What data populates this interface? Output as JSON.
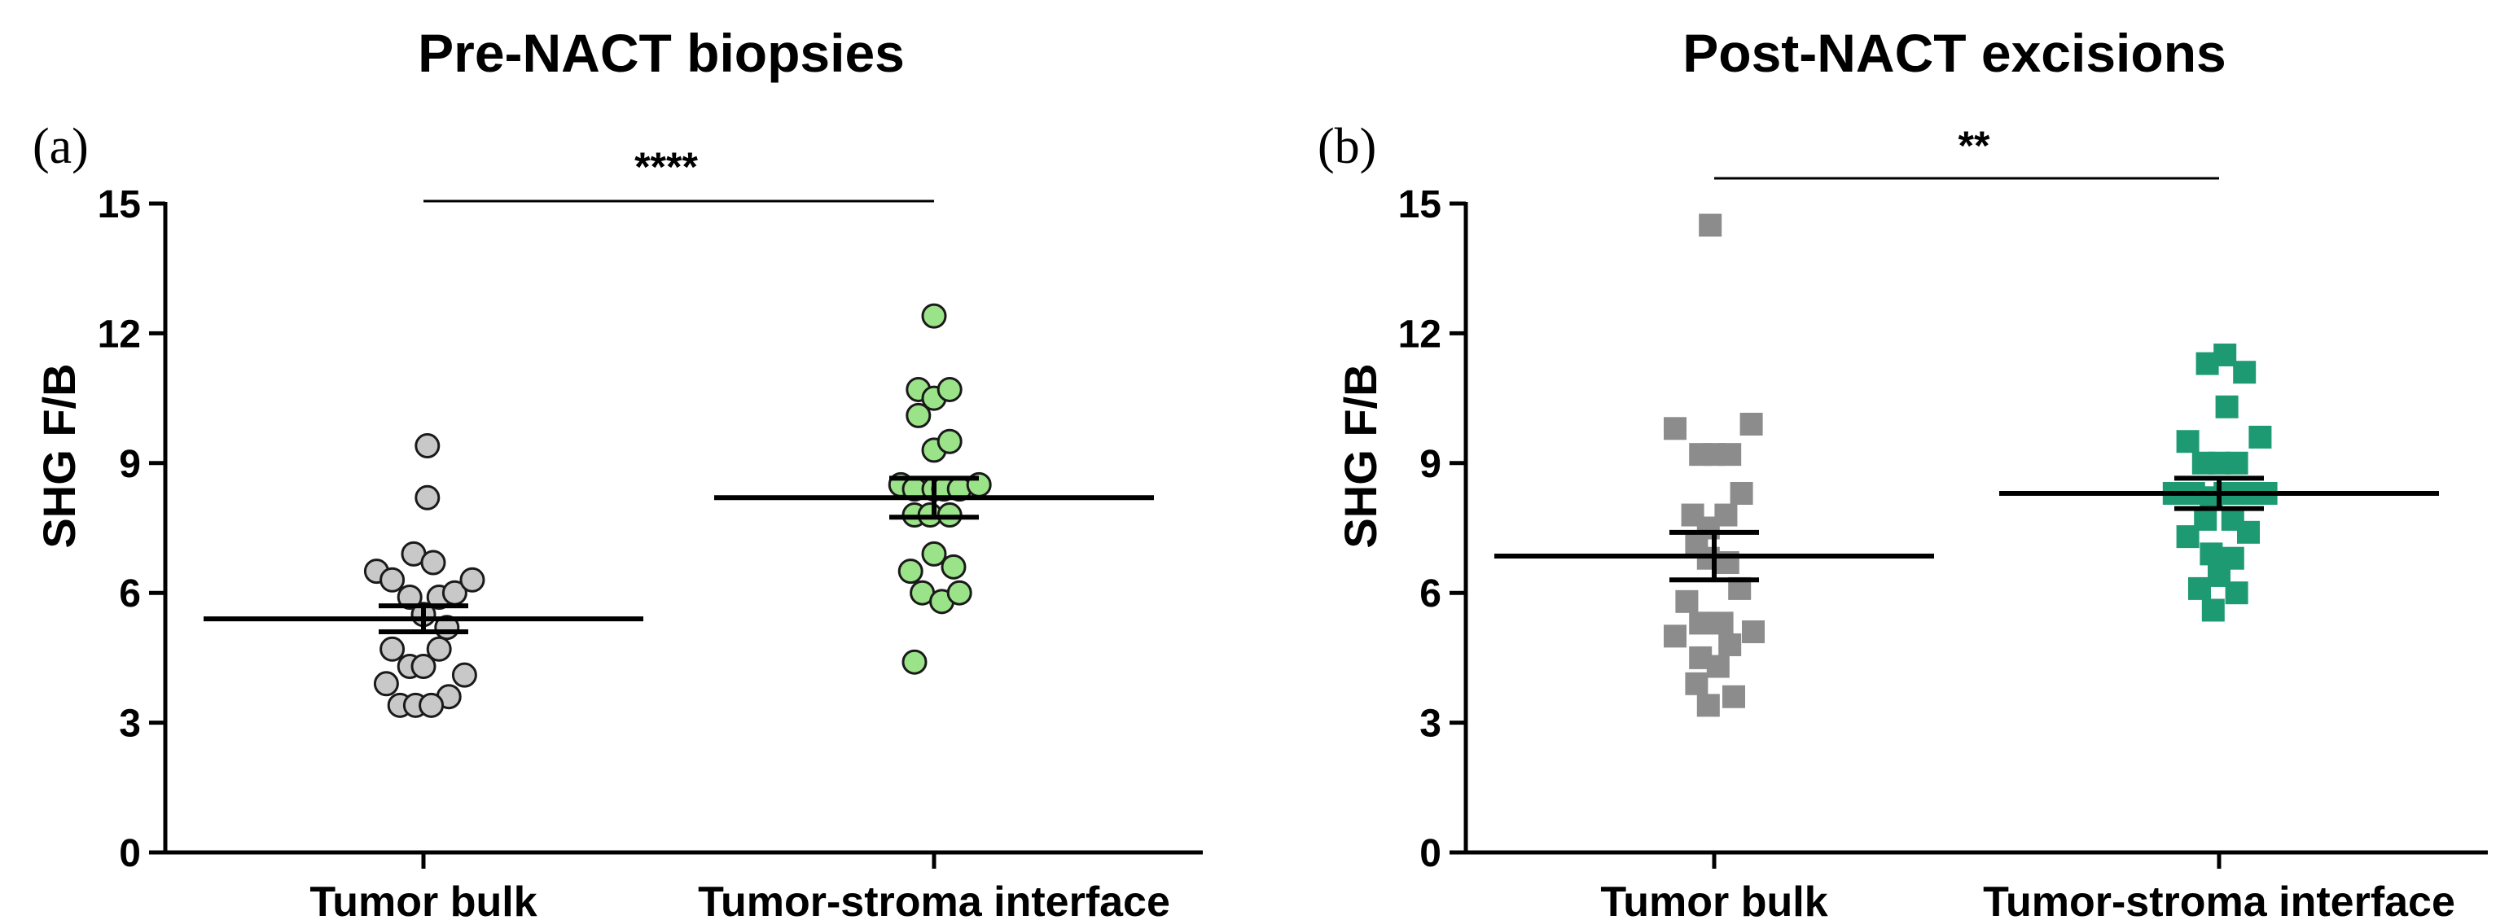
{
  "chart_data": [
    {
      "type": "scatter",
      "panel_label": "(a)",
      "title": "Pre-NACT biopsies",
      "ylabel": "SHG F/B",
      "xlabel": "",
      "ylim": [
        0,
        15
      ],
      "yticks": [
        "0",
        "3",
        "6",
        "9",
        "12",
        "15"
      ],
      "categories": [
        "Tumor bulk",
        "Tumor-stroma interface"
      ],
      "marker": "circle",
      "significance": "****",
      "series": [
        {
          "name": "Tumor bulk",
          "color": "#c8c8c8",
          "mean": 5.4,
          "sem": 0.3,
          "points": [
            {
              "x": 0.02,
              "y": 9.4
            },
            {
              "x": 0.02,
              "y": 8.2
            },
            {
              "x": -0.05,
              "y": 6.9
            },
            {
              "x": 0.05,
              "y": 6.7
            },
            {
              "x": -0.24,
              "y": 6.5
            },
            {
              "x": -0.16,
              "y": 6.3
            },
            {
              "x": -0.07,
              "y": 5.9
            },
            {
              "x": 0.08,
              "y": 5.9
            },
            {
              "x": 0.16,
              "y": 6.0
            },
            {
              "x": 0.25,
              "y": 6.3
            },
            {
              "x": 0.0,
              "y": 5.5
            },
            {
              "x": 0.12,
              "y": 5.2
            },
            {
              "x": -0.16,
              "y": 4.7
            },
            {
              "x": 0.08,
              "y": 4.7
            },
            {
              "x": -0.07,
              "y": 4.3
            },
            {
              "x": 0.0,
              "y": 4.3
            },
            {
              "x": 0.21,
              "y": 4.1
            },
            {
              "x": -0.19,
              "y": 3.9
            },
            {
              "x": 0.13,
              "y": 3.6
            },
            {
              "x": -0.12,
              "y": 3.4
            },
            {
              "x": -0.04,
              "y": 3.4
            },
            {
              "x": 0.04,
              "y": 3.4
            }
          ]
        },
        {
          "name": "Tumor-stroma interface",
          "color": "#9be389",
          "mean": 8.2,
          "sem": 0.45,
          "points": [
            {
              "x": 0.0,
              "y": 12.4
            },
            {
              "x": -0.08,
              "y": 10.7
            },
            {
              "x": -0.08,
              "y": 10.1
            },
            {
              "x": 0.0,
              "y": 10.5
            },
            {
              "x": 0.08,
              "y": 10.7
            },
            {
              "x": 0.0,
              "y": 9.3
            },
            {
              "x": 0.08,
              "y": 9.5
            },
            {
              "x": -0.17,
              "y": 8.5
            },
            {
              "x": -0.1,
              "y": 8.4
            },
            {
              "x": 0.0,
              "y": 8.4
            },
            {
              "x": 0.05,
              "y": 8.4
            },
            {
              "x": 0.13,
              "y": 8.4
            },
            {
              "x": 0.23,
              "y": 8.5
            },
            {
              "x": -0.1,
              "y": 7.8
            },
            {
              "x": -0.02,
              "y": 7.8
            },
            {
              "x": 0.08,
              "y": 7.8
            },
            {
              "x": -0.12,
              "y": 6.5
            },
            {
              "x": 0.0,
              "y": 6.9
            },
            {
              "x": 0.1,
              "y": 6.6
            },
            {
              "x": -0.06,
              "y": 6.0
            },
            {
              "x": 0.04,
              "y": 5.8
            },
            {
              "x": 0.13,
              "y": 6.0
            },
            {
              "x": -0.1,
              "y": 4.4
            }
          ]
        }
      ]
    },
    {
      "type": "scatter",
      "panel_label": "(b)",
      "title": "Post-NACT excisions",
      "ylabel": "SHG F/B",
      "xlabel": "",
      "ylim": [
        0,
        15
      ],
      "yticks": [
        "0",
        "3",
        "6",
        "9",
        "12",
        "15"
      ],
      "categories": [
        "Tumor bulk",
        "Tumor-stroma interface"
      ],
      "marker": "square",
      "significance": "**",
      "series": [
        {
          "name": "Tumor bulk",
          "color": "#8c8c8c",
          "mean": 6.85,
          "sem": 0.55,
          "points": [
            {
              "x": -0.02,
              "y": 14.5
            },
            {
              "x": -0.2,
              "y": 9.8
            },
            {
              "x": 0.19,
              "y": 9.9
            },
            {
              "x": -0.07,
              "y": 9.2
            },
            {
              "x": 0.0,
              "y": 9.2
            },
            {
              "x": 0.08,
              "y": 9.2
            },
            {
              "x": 0.14,
              "y": 8.3
            },
            {
              "x": -0.11,
              "y": 7.8
            },
            {
              "x": 0.06,
              "y": 7.8
            },
            {
              "x": -0.03,
              "y": 7.5
            },
            {
              "x": -0.09,
              "y": 7.1
            },
            {
              "x": -0.03,
              "y": 6.8
            },
            {
              "x": 0.07,
              "y": 6.7
            },
            {
              "x": 0.13,
              "y": 6.1
            },
            {
              "x": -0.14,
              "y": 5.8
            },
            {
              "x": -0.07,
              "y": 5.3
            },
            {
              "x": 0.04,
              "y": 5.3
            },
            {
              "x": -0.2,
              "y": 5.0
            },
            {
              "x": 0.2,
              "y": 5.1
            },
            {
              "x": 0.08,
              "y": 4.8
            },
            {
              "x": -0.07,
              "y": 4.5
            },
            {
              "x": 0.02,
              "y": 4.3
            },
            {
              "x": -0.09,
              "y": 3.9
            },
            {
              "x": -0.03,
              "y": 3.4
            },
            {
              "x": 0.1,
              "y": 3.6
            }
          ]
        },
        {
          "name": "Tumor-stroma interface",
          "color": "#1d9a72",
          "mean": 8.3,
          "sem": 0.35,
          "points": [
            {
              "x": -0.06,
              "y": 11.3
            },
            {
              "x": 0.03,
              "y": 11.5
            },
            {
              "x": 0.13,
              "y": 11.1
            },
            {
              "x": 0.04,
              "y": 10.3
            },
            {
              "x": -0.16,
              "y": 9.5
            },
            {
              "x": 0.21,
              "y": 9.6
            },
            {
              "x": -0.08,
              "y": 9.0
            },
            {
              "x": 0.0,
              "y": 9.0
            },
            {
              "x": 0.09,
              "y": 9.0
            },
            {
              "x": -0.23,
              "y": 8.3
            },
            {
              "x": -0.13,
              "y": 8.3
            },
            {
              "x": -0.04,
              "y": 8.2
            },
            {
              "x": 0.03,
              "y": 8.3
            },
            {
              "x": 0.13,
              "y": 8.3
            },
            {
              "x": 0.24,
              "y": 8.3
            },
            {
              "x": -0.07,
              "y": 7.7
            },
            {
              "x": 0.07,
              "y": 7.7
            },
            {
              "x": -0.16,
              "y": 7.3
            },
            {
              "x": 0.15,
              "y": 7.4
            },
            {
              "x": -0.04,
              "y": 6.9
            },
            {
              "x": 0.07,
              "y": 6.8
            },
            {
              "x": -0.1,
              "y": 6.1
            },
            {
              "x": 0.0,
              "y": 6.4
            },
            {
              "x": 0.09,
              "y": 6.0
            },
            {
              "x": -0.03,
              "y": 5.6
            }
          ]
        }
      ]
    }
  ]
}
